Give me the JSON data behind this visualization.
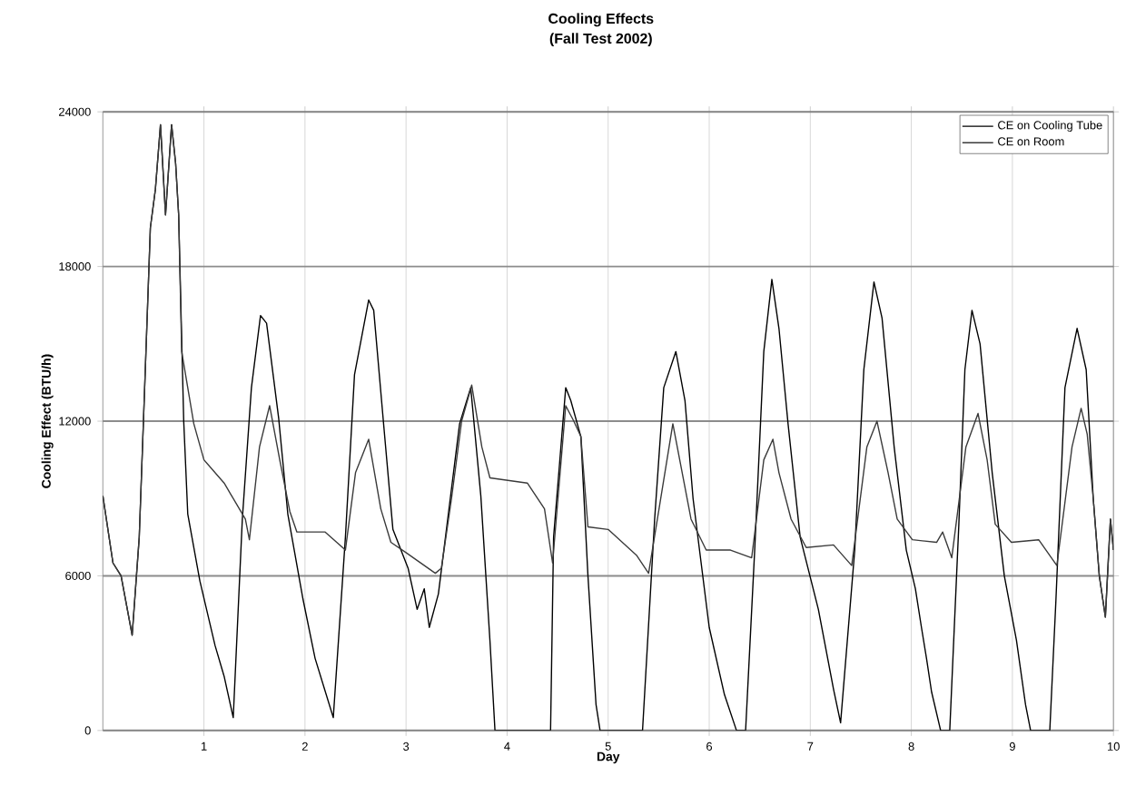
{
  "chart_data": {
    "type": "line",
    "title": "Cooling Effects",
    "subtitle": "(Fall Test 2002)",
    "xlabel": "Day",
    "ylabel": "Cooling Effect (BTU/h)",
    "xlim": [
      0,
      10
    ],
    "xticks": [
      1,
      2,
      3,
      4,
      5,
      6,
      7,
      8,
      9,
      10
    ],
    "ylim": [
      0,
      24000
    ],
    "yticks": [
      0,
      6000,
      12000,
      18000,
      24000
    ],
    "grid": true,
    "legend": "top right",
    "series": [
      {
        "name": "CE on Cooling Tube",
        "color": "#000000",
        "x": [
          0,
          0.1,
          0.18,
          0.29,
          0.36,
          0.42,
          0.47,
          0.52,
          0.57,
          0.62,
          0.68,
          0.72,
          0.75,
          0.8,
          0.84,
          0.96,
          1.11,
          1.2,
          1.29,
          1.38,
          1.47,
          1.56,
          1.62,
          1.74,
          1.83,
          1.98,
          2.1,
          2.28,
          2.4,
          2.49,
          2.63,
          2.68,
          2.78,
          2.87,
          3.02,
          3.11,
          3.18,
          3.23,
          3.32,
          3.53,
          3.64,
          3.74,
          3.83,
          3.88,
          4.43,
          4.46,
          4.58,
          4.63,
          4.73,
          4.8,
          4.88,
          4.92,
          5.34,
          5.46,
          5.55,
          5.67,
          5.76,
          5.84,
          6.0,
          6.15,
          6.27,
          6.36,
          6.45,
          6.54,
          6.62,
          6.69,
          6.78,
          6.9,
          7.08,
          7.23,
          7.3,
          7.44,
          7.53,
          7.63,
          7.71,
          7.83,
          7.95,
          8.04,
          8.1,
          8.15,
          8.2,
          8.29,
          8.38,
          8.47,
          8.53,
          8.6,
          8.68,
          8.8,
          8.92,
          9.04,
          9.13,
          9.18,
          9.37,
          9.43,
          9.52,
          9.64,
          9.73,
          9.8,
          9.86,
          9.92,
          9.97,
          10
        ],
        "values": [
          9100,
          6500,
          6000,
          3700,
          7500,
          14000,
          19500,
          21000,
          23500,
          20000,
          23500,
          22000,
          20000,
          12000,
          8400,
          5800,
          3300,
          2100,
          500,
          8200,
          13300,
          16100,
          15800,
          12100,
          8400,
          5100,
          2800,
          500,
          7500,
          13800,
          16700,
          16300,
          11800,
          7800,
          6300,
          4700,
          5500,
          4000,
          5300,
          11900,
          13300,
          9100,
          3500,
          0,
          0,
          7500,
          13300,
          12800,
          11400,
          6000,
          1000,
          0,
          0,
          8200,
          13300,
          14700,
          12800,
          9000,
          4000,
          1400,
          0,
          0,
          7000,
          14700,
          17500,
          15600,
          11900,
          7500,
          4700,
          1600,
          300,
          7000,
          14000,
          17400,
          16000,
          11000,
          7000,
          5500,
          4000,
          2800,
          1500,
          0,
          0,
          8000,
          14000,
          16300,
          15000,
          10000,
          6000,
          3500,
          1000,
          0,
          0,
          5000,
          13300,
          15600,
          14000,
          9000,
          6000,
          4400,
          8200,
          7000
        ]
      },
      {
        "name": "CE on Room",
        "color": "#3a3a3a",
        "x": [
          0,
          0.1,
          0.18,
          0.29,
          0.36,
          0.42,
          0.47,
          0.52,
          0.57,
          0.62,
          0.68,
          0.72,
          0.75,
          0.78,
          0.9,
          1.0,
          1.2,
          1.41,
          1.45,
          1.55,
          1.65,
          1.75,
          1.85,
          1.92,
          2.2,
          2.4,
          2.5,
          2.63,
          2.75,
          2.85,
          3.0,
          3.29,
          3.35,
          3.45,
          3.55,
          3.65,
          3.75,
          3.83,
          4.2,
          4.37,
          4.45,
          4.58,
          4.66,
          4.73,
          4.8,
          5.0,
          5.28,
          5.4,
          5.64,
          5.82,
          5.97,
          6.21,
          6.42,
          6.54,
          6.63,
          6.69,
          6.81,
          6.96,
          7.23,
          7.41,
          7.56,
          7.66,
          7.77,
          7.86,
          8.01,
          8.25,
          8.31,
          8.4,
          8.54,
          8.66,
          8.75,
          8.83,
          8.99,
          9.26,
          9.44,
          9.59,
          9.68,
          9.74,
          9.8,
          9.86,
          9.92,
          9.97,
          10
        ],
        "values": [
          9100,
          6500,
          6000,
          3700,
          7500,
          14000,
          19500,
          21000,
          23500,
          20000,
          23500,
          22000,
          20000,
          14700,
          11900,
          10500,
          9600,
          8200,
          7400,
          11000,
          12600,
          10500,
          8500,
          7700,
          7700,
          7000,
          10000,
          11300,
          8600,
          7300,
          6900,
          6100,
          6300,
          9000,
          12000,
          13400,
          11000,
          9800,
          9600,
          8600,
          6500,
          12600,
          12000,
          11400,
          7900,
          7800,
          6800,
          6100,
          11900,
          8200,
          7000,
          7000,
          6700,
          10500,
          11300,
          10000,
          8200,
          7100,
          7200,
          6400,
          11000,
          12000,
          10000,
          8200,
          7400,
          7300,
          7700,
          6700,
          11000,
          12300,
          10500,
          8000,
          7300,
          7400,
          6400,
          11000,
          12500,
          11500,
          9000,
          6000,
          4400,
          8200,
          7000
        ]
      }
    ]
  }
}
